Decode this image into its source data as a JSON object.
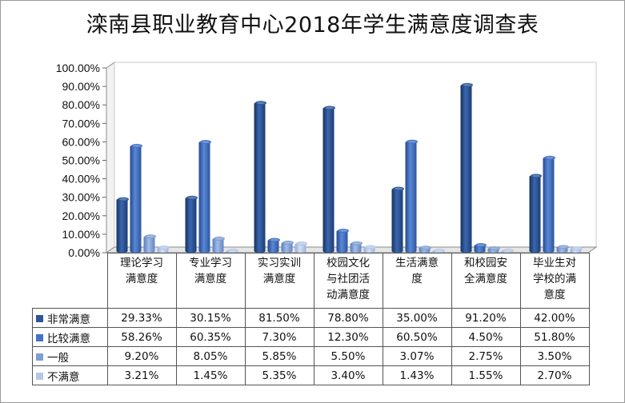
{
  "chart_data": {
    "type": "bar",
    "title": "滦南县职业教育中心2018年学生满意度调查表",
    "categories": [
      "理论学习满意度",
      "专业学习满意度",
      "实习实训满意度",
      "校园文化与社团活动满意度",
      "生活满意度",
      "和校园安全满意度",
      "毕业生对学校的满意度"
    ],
    "series": [
      {
        "name": "非常满意",
        "values": [
          29.33,
          30.15,
          81.5,
          78.8,
          35.0,
          91.2,
          42.0
        ],
        "labels": [
          "29.33%",
          "30.15%",
          "81.50%",
          "78.80%",
          "35.00%",
          "91.20%",
          "42.00%"
        ],
        "color": "#2b5797"
      },
      {
        "name": "比较满意",
        "values": [
          58.26,
          60.35,
          7.3,
          12.3,
          60.5,
          4.5,
          51.8
        ],
        "labels": [
          "58.26%",
          "60.35%",
          "7.30%",
          "12.30%",
          "60.50%",
          "4.50%",
          "51.80%"
        ],
        "color": "#4472c4"
      },
      {
        "name": "一般",
        "values": [
          9.2,
          8.05,
          5.85,
          5.5,
          3.07,
          2.75,
          3.5
        ],
        "labels": [
          "9.20%",
          "8.05%",
          "5.85%",
          "5.50%",
          "3.07%",
          "2.75%",
          "3.50%"
        ],
        "color": "#7f9fd3"
      },
      {
        "name": "不满意",
        "values": [
          3.21,
          1.45,
          5.35,
          3.4,
          1.43,
          1.55,
          2.7
        ],
        "labels": [
          "3.21%",
          "1.45%",
          "5.35%",
          "3.40%",
          "1.43%",
          "1.55%",
          "2.70%"
        ],
        "color": "#b4c7e7"
      }
    ],
    "yticks": [
      "0.00%",
      "10.00%",
      "20.00%",
      "30.00%",
      "40.00%",
      "50.00%",
      "60.00%",
      "70.00%",
      "80.00%",
      "90.00%",
      "100.00%"
    ],
    "ylim": [
      0,
      100
    ],
    "grid": false,
    "legend": "data-table"
  }
}
